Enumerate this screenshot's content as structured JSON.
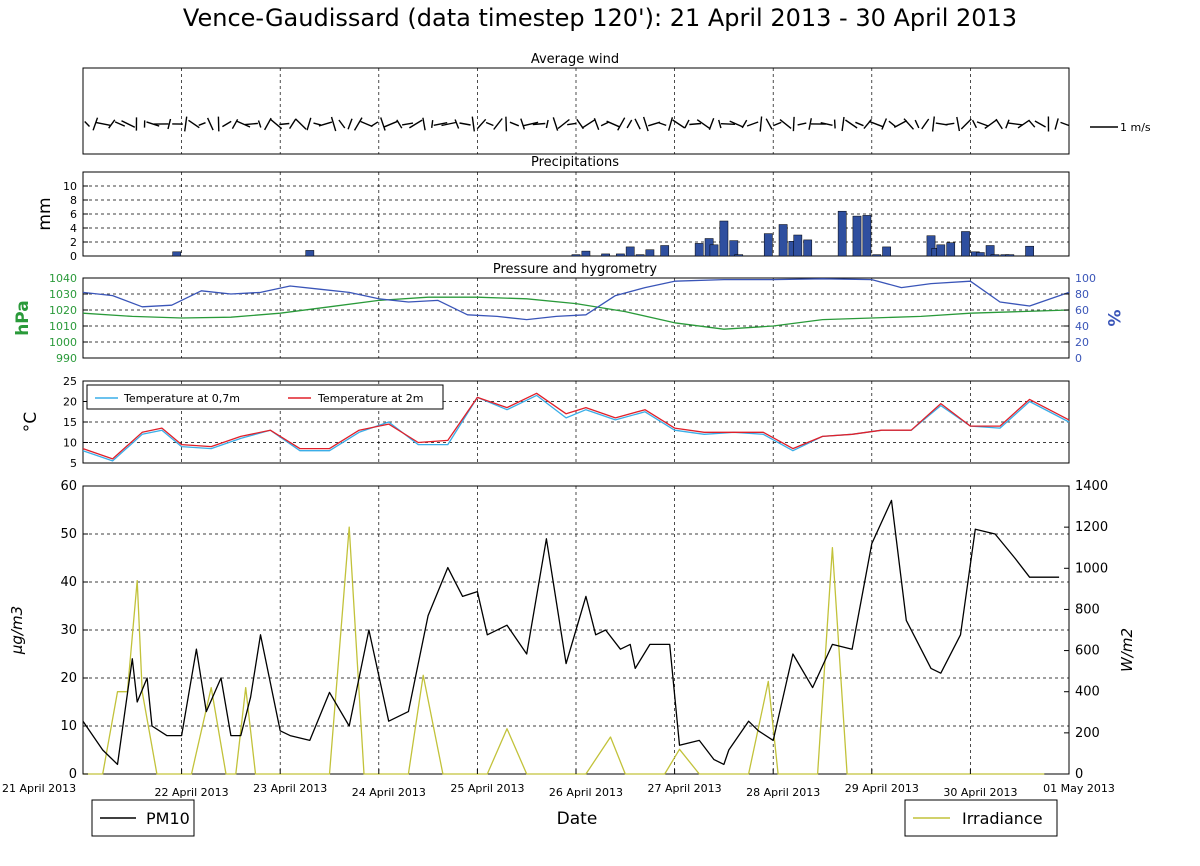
{
  "title": "Vence-Gaudissard (data timestep 120'): 21 April 2013 - 30 April 2013",
  "colors": {
    "pressure": "#2a9a3a",
    "humidity": "#3a55b8",
    "precip": "#2f4f9f",
    "t07": "#3aaee8",
    "t2": "#e0202a",
    "pm10": "#000000",
    "irradiance": "#c2c23a"
  },
  "chart_data": [
    {
      "type": "wind-barbs",
      "title": "Average wind",
      "scale_label": "1 m/s",
      "note": "wind vectors every 2 hours across the 10-day period"
    },
    {
      "type": "bar",
      "title": "Precipitations",
      "ylabel": "mm",
      "ylim": [
        0,
        12
      ],
      "yticks": [
        0,
        2,
        4,
        6,
        8,
        10
      ],
      "x_days": [
        0.95,
        2.3,
        5.0,
        5.1,
        5.3,
        5.45,
        5.55,
        5.65,
        5.75,
        5.9,
        6.25,
        6.35,
        6.4,
        6.5,
        6.6,
        6.65,
        6.95,
        7.1,
        7.2,
        7.25,
        7.35,
        7.7,
        7.85,
        7.95,
        8.05,
        8.15,
        8.6,
        8.65,
        8.7,
        8.8,
        8.95,
        9.05,
        9.1,
        9.2,
        9.25,
        9.35,
        9.4,
        9.6
      ],
      "values": [
        0.6,
        0.8,
        0.2,
        0.7,
        0.3,
        0.3,
        1.3,
        0.2,
        0.9,
        1.5,
        1.8,
        2.5,
        1.6,
        5.0,
        2.2,
        0.2,
        3.2,
        4.5,
        2.1,
        3.0,
        2.3,
        6.4,
        5.7,
        5.8,
        0.2,
        1.3,
        2.9,
        1.1,
        1.6,
        1.9,
        3.5,
        0.6,
        0.5,
        1.5,
        0.2,
        0.2,
        0.2,
        1.4
      ]
    },
    {
      "type": "line",
      "title": "Pressure and hygrometry",
      "ylabel_left": "hPa",
      "ylabel_right": "%",
      "yticks_left": [
        990,
        1000,
        1010,
        1020,
        1030,
        1040
      ],
      "yticks_right": [
        0,
        20,
        40,
        60,
        80,
        100
      ],
      "ylim_left": [
        990,
        1040
      ],
      "ylim_right": [
        0,
        100
      ],
      "series": [
        {
          "name": "pressure",
          "x": [
            0,
            0.5,
            1,
            1.5,
            2,
            2.5,
            3,
            3.5,
            4,
            4.5,
            5,
            5.5,
            6,
            6.5,
            7,
            7.5,
            8,
            8.5,
            9,
            9.5,
            10
          ],
          "values": [
            1018,
            1016,
            1015,
            1015.5,
            1018,
            1022,
            1026,
            1028,
            1028,
            1027,
            1024,
            1019,
            1012,
            1008,
            1010,
            1014,
            1015,
            1016,
            1018,
            1019,
            1020
          ]
        },
        {
          "name": "humidity",
          "x": [
            0,
            0.3,
            0.6,
            0.9,
            1.2,
            1.5,
            1.8,
            2.1,
            2.4,
            2.7,
            3.0,
            3.3,
            3.6,
            3.9,
            4.2,
            4.5,
            4.8,
            5.1,
            5.4,
            5.7,
            6.0,
            6.5,
            7.0,
            7.5,
            8.0,
            8.3,
            8.6,
            9.0,
            9.3,
            9.6,
            10
          ],
          "values": [
            82,
            78,
            64,
            66,
            84,
            80,
            82,
            90,
            86,
            82,
            74,
            70,
            72,
            54,
            52,
            48,
            52,
            54,
            78,
            88,
            96,
            98,
            98,
            99,
            98,
            88,
            93,
            96,
            70,
            65,
            82
          ]
        }
      ]
    },
    {
      "type": "line",
      "title": "",
      "ylabel": "°C",
      "yticks": [
        5,
        10,
        15,
        20,
        25
      ],
      "ylim": [
        5,
        25
      ],
      "legend": [
        "Temperature at 0,7m",
        "Temperature at 2m"
      ],
      "series": [
        {
          "name": "Temperature at 0,7m",
          "x": [
            0,
            0.3,
            0.6,
            0.8,
            1.0,
            1.3,
            1.6,
            1.9,
            2.2,
            2.5,
            2.8,
            3.1,
            3.4,
            3.7,
            4.0,
            4.3,
            4.6,
            4.9,
            5.1,
            5.4,
            5.7,
            6.0,
            6.3,
            6.6,
            6.9,
            7.2,
            7.5,
            7.8,
            8.1,
            8.4,
            8.7,
            9.0,
            9.3,
            9.6,
            10
          ],
          "values": [
            8,
            5.5,
            12,
            13,
            9,
            8.5,
            11,
            13,
            8,
            8,
            12.5,
            15,
            9.5,
            9.5,
            21,
            18,
            21.5,
            16,
            18,
            15.5,
            17.5,
            13,
            12,
            12.5,
            12,
            8,
            11.5,
            12,
            13,
            13,
            19,
            14,
            13.5,
            20,
            15
          ]
        },
        {
          "name": "Temperature at 2m",
          "x": [
            0,
            0.3,
            0.6,
            0.8,
            1.0,
            1.3,
            1.6,
            1.9,
            2.2,
            2.5,
            2.8,
            3.1,
            3.4,
            3.7,
            4.0,
            4.3,
            4.6,
            4.9,
            5.1,
            5.4,
            5.7,
            6.0,
            6.3,
            6.6,
            6.9,
            7.2,
            7.5,
            7.8,
            8.1,
            8.4,
            8.7,
            9.0,
            9.3,
            9.6,
            10
          ],
          "values": [
            8.5,
            6,
            12.5,
            13.5,
            9.5,
            9,
            11.5,
            13,
            8.5,
            8.5,
            13,
            14.5,
            10,
            10.5,
            21,
            18.5,
            22,
            17,
            18.5,
            16,
            18,
            13.5,
            12.5,
            12.5,
            12.5,
            8.5,
            11.5,
            12,
            13,
            13,
            19.5,
            14,
            14,
            20.5,
            15.5
          ]
        }
      ]
    },
    {
      "type": "line",
      "title": "",
      "xlabel": "Date",
      "ylabel_left": "μg/m3",
      "ylabel_right": "W/m2",
      "ylim_left": [
        0,
        60
      ],
      "ylim_right": [
        0,
        1400
      ],
      "yticks_left": [
        0,
        10,
        20,
        30,
        40,
        50,
        60
      ],
      "yticks_right": [
        0,
        200,
        400,
        600,
        800,
        1000,
        1200,
        1400
      ],
      "x_tick_labels": [
        "21 April 2013",
        "22 April 2013",
        "23 April 2013",
        "24 April 2013",
        "25 April 2013",
        "26 April 2013",
        "27 April 2013",
        "28 April 2013",
        "29 April 2013",
        "30 April 2013",
        "01 May 2013"
      ],
      "legend": [
        "PM10",
        "Irradiance"
      ],
      "series": [
        {
          "name": "PM10",
          "x": [
            0,
            0.2,
            0.35,
            0.5,
            0.55,
            0.65,
            0.7,
            0.85,
            1.0,
            1.15,
            1.25,
            1.4,
            1.5,
            1.6,
            1.7,
            1.8,
            2.0,
            2.1,
            2.3,
            2.5,
            2.7,
            2.9,
            3.1,
            3.3,
            3.5,
            3.7,
            3.85,
            4.0,
            4.1,
            4.3,
            4.5,
            4.7,
            4.9,
            5.1,
            5.2,
            5.3,
            5.45,
            5.55,
            5.6,
            5.75,
            5.95,
            6.05,
            6.25,
            6.4,
            6.5,
            6.55,
            6.65,
            6.75,
            6.85,
            7.0,
            7.2,
            7.4,
            7.6,
            7.8,
            8.0,
            8.2,
            8.35,
            8.5,
            8.6,
            8.7,
            8.9,
            9.05,
            9.25,
            9.45,
            9.6,
            9.75,
            9.9
          ],
          "values": [
            11,
            5,
            2,
            24,
            15,
            20,
            10,
            8,
            8,
            26,
            13,
            20,
            8,
            8,
            16,
            29,
            9,
            8,
            7,
            17,
            10,
            30,
            11,
            13,
            33,
            43,
            37,
            38,
            29,
            31,
            25,
            49,
            23,
            37,
            29,
            30,
            26,
            27,
            22,
            27,
            27,
            6,
            7,
            3,
            2,
            5,
            8,
            11,
            9,
            7,
            25,
            18,
            27,
            26,
            48,
            57,
            32,
            26,
            22,
            21,
            29,
            51,
            50,
            45,
            41,
            41,
            41
          ]
        },
        {
          "name": "Irradiance",
          "x": [
            0,
            0.2,
            0.35,
            0.45,
            0.55,
            0.6,
            0.75,
            0.9,
            1.0,
            1.1,
            1.3,
            1.45,
            1.55,
            1.65,
            1.75,
            1.9,
            2.0,
            2.25,
            2.5,
            2.7,
            2.85,
            3.05,
            3.2,
            3.3,
            3.45,
            3.65,
            3.85,
            4.1,
            4.3,
            4.5,
            4.7,
            4.9,
            5.1,
            5.35,
            5.5,
            5.7,
            5.9,
            6.05,
            6.25,
            6.45,
            6.6,
            6.75,
            6.95,
            7.05,
            7.25,
            7.45,
            7.6,
            7.75,
            7.95,
            8.05,
            8.25,
            8.45,
            8.6,
            8.75,
            8.95,
            9.05,
            9.25,
            9.4,
            9.6,
            9.75
          ],
          "values": [
            0,
            0,
            400,
            400,
            940,
            400,
            0,
            0,
            0,
            0,
            420,
            0,
            0,
            420,
            0,
            0,
            0,
            0,
            0,
            1200,
            0,
            0,
            0,
            0,
            480,
            0,
            0,
            0,
            220,
            0,
            0,
            0,
            0,
            180,
            0,
            0,
            0,
            120,
            0,
            0,
            0,
            0,
            450,
            0,
            0,
            0,
            1100,
            0,
            0,
            0,
            0,
            0,
            0,
            0,
            0,
            0,
            0,
            0,
            0,
            0
          ]
        }
      ]
    }
  ]
}
